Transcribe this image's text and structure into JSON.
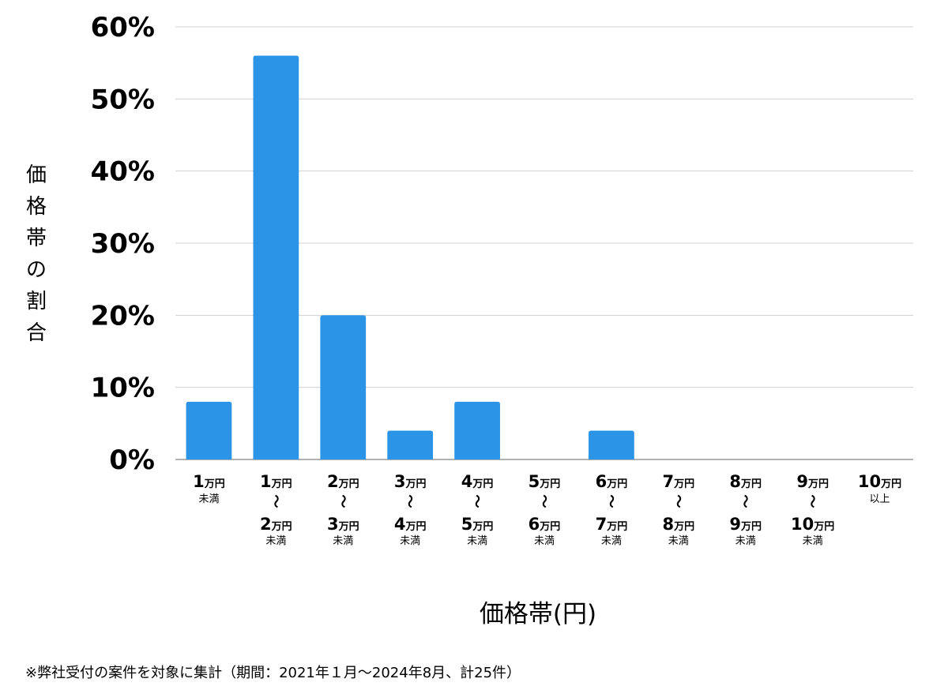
{
  "chart_data": {
    "type": "bar",
    "categories": [
      {
        "top": "1",
        "unit": "万円",
        "sub": "未満",
        "bottom": "",
        "bottom_unit": ""
      },
      {
        "top": "1",
        "unit": "万円",
        "sub": "未満",
        "bottom": "2",
        "bottom_unit": "万円"
      },
      {
        "top": "2",
        "unit": "万円",
        "sub": "未満",
        "bottom": "3",
        "bottom_unit": "万円"
      },
      {
        "top": "3",
        "unit": "万円",
        "sub": "未満",
        "bottom": "4",
        "bottom_unit": "万円"
      },
      {
        "top": "4",
        "unit": "万円",
        "sub": "未満",
        "bottom": "5",
        "bottom_unit": "万円"
      },
      {
        "top": "5",
        "unit": "万円",
        "sub": "未満",
        "bottom": "6",
        "bottom_unit": "万円"
      },
      {
        "top": "6",
        "unit": "万円",
        "sub": "未満",
        "bottom": "7",
        "bottom_unit": "万円"
      },
      {
        "top": "7",
        "unit": "万円",
        "sub": "未満",
        "bottom": "8",
        "bottom_unit": "万円"
      },
      {
        "top": "8",
        "unit": "万円",
        "sub": "未満",
        "bottom": "9",
        "bottom_unit": "万円"
      },
      {
        "top": "9",
        "unit": "万円",
        "sub": "未満",
        "bottom": "10",
        "bottom_unit": "万円"
      },
      {
        "top": "10",
        "unit": "万円",
        "sub": "以上",
        "bottom": "",
        "bottom_unit": ""
      }
    ],
    "range_mark": "〜",
    "values": [
      8,
      56,
      20,
      4,
      8,
      0,
      4,
      0,
      0,
      0,
      0
    ],
    "ylim": [
      0,
      60
    ],
    "yticks": [
      0,
      10,
      20,
      30,
      40,
      50,
      60
    ],
    "ytick_suffix": "%",
    "ylabel": "価格帯の割合",
    "xlabel": "価格帯(円)",
    "grid": true,
    "bar_color": "#2b94e6",
    "grid_color": "#d0d0d0",
    "axis_color": "#999999"
  },
  "footnote": "※弊社受付の案件を対象に集計（期間：2021年１月〜2024年8月、計25件）"
}
